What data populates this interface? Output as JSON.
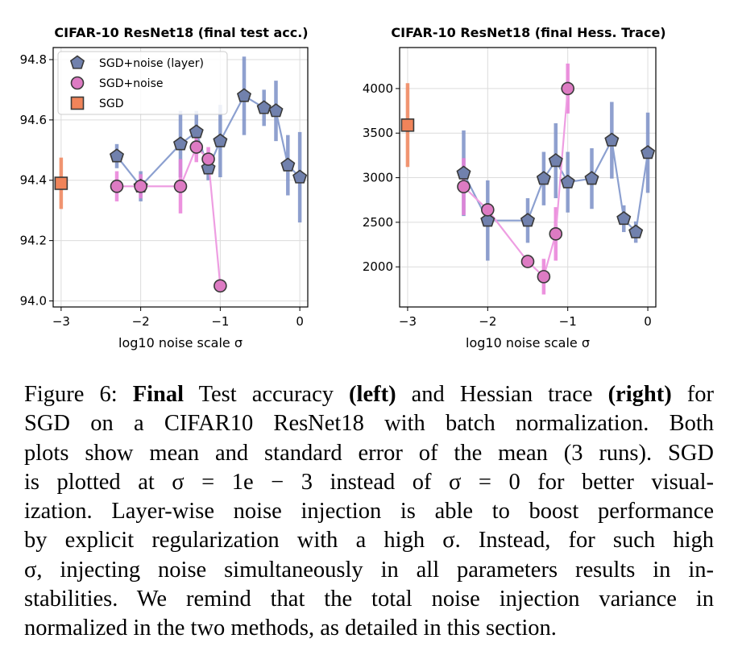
{
  "chart_data": [
    {
      "type": "scatter",
      "title": "CIFAR-10 ResNet18 (final test acc.)",
      "xlabel": "log10 noise scale σ",
      "ylabel": "",
      "xlim": [
        -3.1,
        0.1
      ],
      "ylim": [
        93.98,
        94.84
      ],
      "xticks": [
        -3,
        -2,
        -1,
        0
      ],
      "xtick_labels": [
        "−3",
        "−2",
        "−1",
        "0"
      ],
      "yticks": [
        94.0,
        94.2,
        94.4,
        94.6,
        94.8
      ],
      "ytick_labels": [
        "94.0",
        "94.2",
        "94.4",
        "94.6",
        "94.8"
      ],
      "grid": true,
      "legend": "top-left",
      "series": [
        {
          "name": "SGD+noise (layer)",
          "marker": "pentagon",
          "x": [
            -2.3,
            -2.0,
            -1.5,
            -1.3,
            -1.15,
            -1.0,
            -0.7,
            -0.45,
            -0.3,
            -0.15,
            0.0
          ],
          "y": [
            94.48,
            94.38,
            94.52,
            94.56,
            94.44,
            94.53,
            94.68,
            94.64,
            94.63,
            94.45,
            94.41
          ],
          "err": [
            0.04,
            0.05,
            0.11,
            0.07,
            0.04,
            0.12,
            0.13,
            0.06,
            0.1,
            0.1,
            0.15
          ]
        },
        {
          "name": "SGD+noise",
          "marker": "circle",
          "x": [
            -2.3,
            -2.0,
            -1.5,
            -1.3,
            -1.15,
            -1.0
          ],
          "y": [
            94.38,
            94.38,
            94.38,
            94.51,
            94.47,
            94.05
          ],
          "err": [
            0.05,
            0.04,
            0.09,
            0.05,
            0.04,
            0.0
          ]
        },
        {
          "name": "SGD",
          "marker": "square",
          "x": [
            -3.0
          ],
          "y": [
            94.39
          ],
          "err": [
            0.085
          ]
        }
      ]
    },
    {
      "type": "scatter",
      "title": "CIFAR-10 ResNet18 (final Hess. Trace)",
      "xlabel": "log10 noise scale σ",
      "ylabel": "",
      "xlim": [
        -3.1,
        0.1
      ],
      "ylim": [
        1550,
        4460
      ],
      "xticks": [
        -3,
        -2,
        -1,
        0
      ],
      "xtick_labels": [
        "−3",
        "−2",
        "−1",
        "0"
      ],
      "yticks": [
        2000,
        2500,
        3000,
        3500,
        4000
      ],
      "ytick_labels": [
        "2000",
        "2500",
        "3000",
        "3500",
        "4000"
      ],
      "grid": true,
      "legend": "none",
      "series": [
        {
          "name": "SGD+noise (layer)",
          "marker": "pentagon",
          "x": [
            -2.3,
            -2.0,
            -1.5,
            -1.3,
            -1.15,
            -1.0,
            -0.7,
            -0.45,
            -0.3,
            -0.15,
            0.0
          ],
          "y": [
            3050,
            2520,
            2520,
            2990,
            3190,
            2950,
            2990,
            3420,
            2540,
            2390,
            3280
          ],
          "err": [
            480,
            450,
            250,
            300,
            420,
            340,
            340,
            430,
            150,
            120,
            450
          ]
        },
        {
          "name": "SGD+noise",
          "marker": "circle",
          "x": [
            -2.3,
            -2.0,
            -1.5,
            -1.3,
            -1.15,
            -1.0
          ],
          "y": [
            2900,
            2640,
            2060,
            1890,
            2370,
            4000
          ],
          "err": [
            320,
            0,
            0,
            200,
            300,
            280
          ]
        },
        {
          "name": "SGD",
          "marker": "square",
          "x": [
            -3.0
          ],
          "y": [
            3590
          ],
          "err": [
            470
          ]
        }
      ]
    }
  ],
  "colors": {
    "layer_line": "#8ca0d0",
    "layer_marker": "#7181ad",
    "noise_line": "#ee9ee2",
    "noise_marker": "#dd7bc3",
    "sgd": "#f0845a",
    "errbar_layer": "#7b8fc7",
    "errbar_noise": "#e97fd8",
    "errbar_sgd": "#f0845a"
  },
  "caption": {
    "lines": [
      [
        {
          "t": "Figure 6: "
        },
        {
          "t": "Final",
          "b": true
        },
        {
          "t": " Test accuracy "
        },
        {
          "t": "(left)",
          "b": true
        },
        {
          "t": " and Hessian trace "
        },
        {
          "t": "(right)",
          "b": true
        },
        {
          "t": " for"
        }
      ],
      [
        {
          "t": "SGD on a CIFAR10 ResNet18 with batch normalization.  Both"
        }
      ],
      [
        {
          "t": "plots show mean and standard error of the mean (3 runs).  SGD"
        }
      ],
      [
        {
          "t": "is plotted at σ = 1e − 3 instead of σ = 0 for better visual-"
        }
      ],
      [
        {
          "t": "ization.  Layer-wise noise injection is able to boost performance"
        }
      ],
      [
        {
          "t": "by explicit regularization with a high σ.  Instead, for such high"
        }
      ],
      [
        {
          "t": "σ, injecting noise simultaneously in all parameters results in in-"
        }
      ],
      [
        {
          "t": "stabilities.  We remind that the total noise injection variance in"
        }
      ],
      [
        {
          "t": "normalized in the two methods, as detailed in this section.",
          "last": true
        }
      ]
    ]
  }
}
